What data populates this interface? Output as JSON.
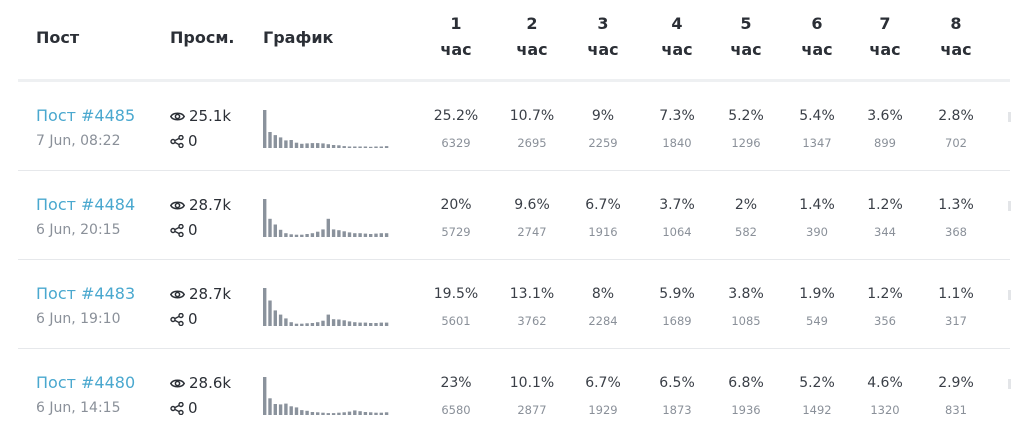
{
  "header": {
    "post": "Пост",
    "views": "Просм.",
    "graph": "График",
    "hour_unit": "час",
    "hours": [
      "1",
      "2",
      "3",
      "4",
      "5",
      "6",
      "7",
      "8"
    ]
  },
  "rows": [
    {
      "title": "Пост #4485",
      "date": "7 Jun, 08:22",
      "views": "25.1k",
      "shares": "0",
      "sparkline": [
        1.0,
        0.42,
        0.34,
        0.28,
        0.2,
        0.21,
        0.14,
        0.11,
        0.12,
        0.13,
        0.13,
        0.12,
        0.1,
        0.08,
        0.07,
        0.05,
        0.04,
        0.04,
        0.04,
        0.04,
        0.03,
        0.04,
        0.04,
        0.05
      ],
      "percents": [
        "25.2%",
        "10.7%",
        "9%",
        "7.3%",
        "5.2%",
        "5.4%",
        "3.6%",
        "2.8%"
      ],
      "counts": [
        "6329",
        "2695",
        "2259",
        "1840",
        "1296",
        "1347",
        "899",
        "702"
      ]
    },
    {
      "title": "Пост #4484",
      "date": "6 Jun, 20:15",
      "views": "28.7k",
      "shares": "0",
      "sparkline": [
        1.0,
        0.48,
        0.33,
        0.19,
        0.1,
        0.07,
        0.06,
        0.06,
        0.08,
        0.1,
        0.14,
        0.2,
        0.48,
        0.2,
        0.18,
        0.15,
        0.12,
        0.1,
        0.1,
        0.09,
        0.08,
        0.09,
        0.1,
        0.1
      ],
      "percents": [
        "20%",
        "9.6%",
        "6.7%",
        "3.7%",
        "2%",
        "1.4%",
        "1.2%",
        "1.3%"
      ],
      "counts": [
        "5729",
        "2747",
        "1916",
        "1064",
        "582",
        "390",
        "344",
        "368"
      ]
    },
    {
      "title": "Пост #4483",
      "date": "6 Jun, 19:10",
      "views": "28.7k",
      "shares": "0",
      "sparkline": [
        1.0,
        0.67,
        0.41,
        0.3,
        0.2,
        0.1,
        0.06,
        0.06,
        0.07,
        0.08,
        0.1,
        0.14,
        0.3,
        0.18,
        0.17,
        0.15,
        0.12,
        0.1,
        0.09,
        0.09,
        0.08,
        0.08,
        0.09,
        0.09
      ],
      "percents": [
        "19.5%",
        "13.1%",
        "8%",
        "5.9%",
        "3.8%",
        "1.9%",
        "1.2%",
        "1.1%"
      ],
      "counts": [
        "5601",
        "3762",
        "2284",
        "1689",
        "1085",
        "549",
        "356",
        "317"
      ]
    },
    {
      "title": "Пост #4480",
      "date": "6 Jun, 14:15",
      "views": "28.6k",
      "shares": "0",
      "sparkline": [
        1.0,
        0.44,
        0.29,
        0.28,
        0.3,
        0.23,
        0.2,
        0.13,
        0.11,
        0.08,
        0.07,
        0.06,
        0.05,
        0.05,
        0.06,
        0.07,
        0.09,
        0.12,
        0.1,
        0.08,
        0.07,
        0.06,
        0.06,
        0.07
      ],
      "percents": [
        "23%",
        "10.1%",
        "6.7%",
        "6.5%",
        "6.8%",
        "5.2%",
        "4.6%",
        "2.9%"
      ],
      "counts": [
        "6580",
        "2877",
        "1929",
        "1873",
        "1936",
        "1492",
        "1320",
        "831"
      ]
    }
  ],
  "icons": {
    "views": "eye-icon",
    "shares": "share-icon"
  },
  "colors": {
    "link": "#4aa8cf",
    "bar": "#8a929c",
    "muted": "#8a9099"
  }
}
